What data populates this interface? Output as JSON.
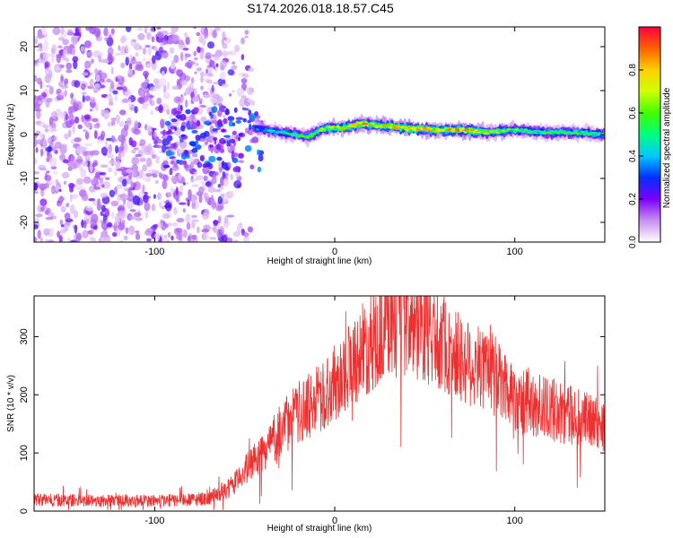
{
  "title": "S174.2026.018.18.57.C45",
  "chart_data": [
    {
      "type": "heatmap",
      "xlabel": "Height of straight line (km)",
      "ylabel": "Frequency (Hz)",
      "xlim": [
        -167,
        150
      ],
      "ylim": [
        -24.5,
        24.5
      ],
      "xticks": [
        -100,
        0,
        100
      ],
      "yticks": [
        -20,
        -10,
        0,
        10,
        20
      ],
      "colorbar": {
        "label": "Normalized spectral amplitude",
        "range": [
          0,
          1
        ],
        "ticks": [
          0.0,
          0.2,
          0.4,
          0.6,
          0.8
        ],
        "tick_labels": [
          "0.0",
          "0.2",
          "0.4",
          "0.6",
          "0.8"
        ],
        "colors": [
          "#ffffff",
          "#c78ff0",
          "#7a00ff",
          "#0030ff",
          "#00c8ff",
          "#00ff80",
          "#40ff00",
          "#d0ff00",
          "#ffd000",
          "#ff6000",
          "#ff0040"
        ]
      },
      "ridge": {
        "x": [
          -45,
          -30,
          -15,
          -5,
          5,
          15,
          25,
          40,
          55,
          70,
          85,
          100,
          115,
          130,
          150
        ],
        "freq": [
          1.5,
          0.5,
          -0.5,
          1.5,
          1.5,
          2.5,
          2.0,
          1.5,
          1.0,
          1.0,
          0.5,
          1.0,
          0.5,
          0.5,
          0.0
        ],
        "peak_amplitude": [
          0.35,
          0.5,
          0.6,
          0.7,
          0.75,
          0.85,
          0.8,
          0.85,
          0.8,
          0.85,
          0.7,
          0.6,
          0.55,
          0.6,
          0.5
        ]
      },
      "noise_region_x": [
        -167,
        -60
      ]
    },
    {
      "type": "line",
      "xlabel": "Height of straight line (km)",
      "ylabel": "SNR (10 * v/v)",
      "xlim": [
        -167,
        150
      ],
      "ylim": [
        0,
        370
      ],
      "xticks": [
        -100,
        0,
        100
      ],
      "yticks": [
        0,
        100,
        200,
        300
      ],
      "series": [
        {
          "name": "SNR",
          "color": "#ee3030",
          "x": [
            -167,
            -140,
            -120,
            -100,
            -80,
            -70,
            -60,
            -55,
            -50,
            -40,
            -30,
            -20,
            -10,
            0,
            10,
            20,
            30,
            40,
            50,
            60,
            70,
            80,
            90,
            100,
            110,
            120,
            130,
            140,
            150
          ],
          "y": [
            20,
            18,
            18,
            18,
            19,
            22,
            35,
            50,
            70,
            100,
            140,
            170,
            190,
            220,
            260,
            290,
            320,
            320,
            310,
            290,
            260,
            250,
            230,
            200,
            185,
            175,
            165,
            155,
            145
          ]
        }
      ]
    }
  ]
}
